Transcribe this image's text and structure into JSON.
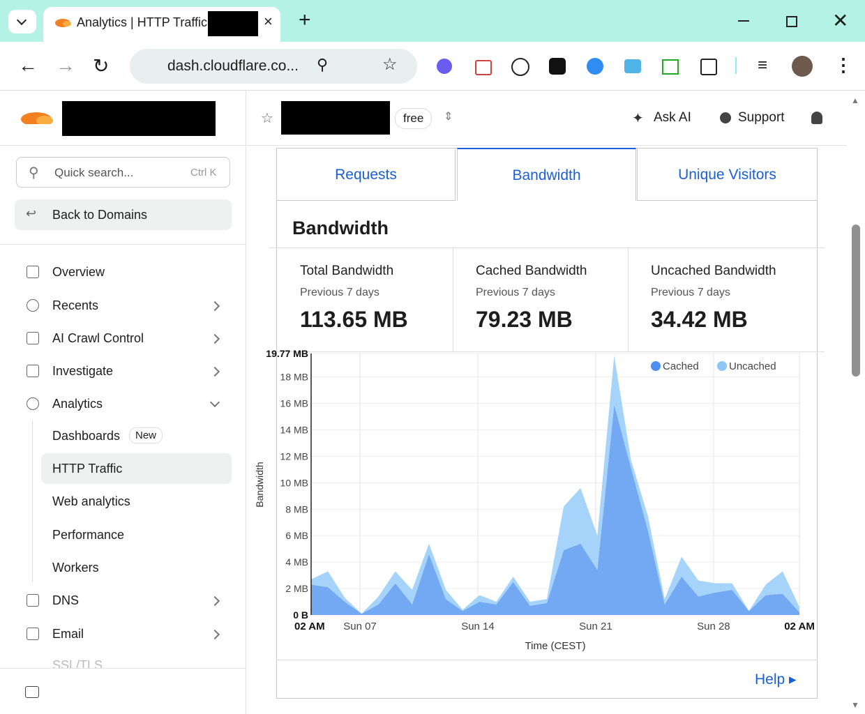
{
  "browser": {
    "tab_title": "Analytics | HTTP Traffic |",
    "url": "dash.cloudflare.co..."
  },
  "sidebar": {
    "search_placeholder": "Quick search...",
    "search_shortcut": "Ctrl K",
    "back": "Back to Domains",
    "nav": [
      "Overview",
      "Recents",
      "AI Crawl Control",
      "Investigate",
      "Analytics"
    ],
    "analytics_sub": [
      {
        "label": "Dashboards",
        "badge": "New"
      },
      {
        "label": "HTTP Traffic"
      },
      {
        "label": "Web analytics"
      },
      {
        "label": "Performance"
      },
      {
        "label": "Workers"
      }
    ],
    "nav_more": [
      "DNS",
      "Email",
      "SSL/TLS"
    ]
  },
  "header": {
    "plan": "free",
    "ask_ai": "Ask AI",
    "support": "Support"
  },
  "tabs": [
    "Requests",
    "Bandwidth",
    "Unique Visitors"
  ],
  "panel_title": "Bandwidth",
  "stats": [
    {
      "label": "Total Bandwidth",
      "period": "Previous 7 days",
      "value": "113.65 MB"
    },
    {
      "label": "Cached Bandwidth",
      "period": "Previous 7 days",
      "value": "79.23 MB"
    },
    {
      "label": "Uncached Bandwidth",
      "period": "Previous 7 days",
      "value": "34.42 MB"
    }
  ],
  "help": "Help",
  "chart_data": {
    "type": "stacked_area",
    "xlabel": "Time (CEST)",
    "ylabel": "Bandwidth",
    "grid": true,
    "legend": "top-right",
    "x": [
      0,
      1,
      2,
      3,
      4,
      5,
      6,
      7,
      8,
      9,
      10,
      11,
      12,
      13,
      14,
      15,
      16,
      17,
      18,
      19,
      20,
      21,
      22,
      23,
      24,
      25,
      26,
      27,
      28,
      29
    ],
    "xlim": [
      0,
      29
    ],
    "xticks": [
      {
        "value": 0,
        "label": "02 AM"
      },
      {
        "value": 2.9,
        "label": "Sun 07"
      },
      {
        "value": 9.9,
        "label": "Sun 14"
      },
      {
        "value": 16.9,
        "label": "Sun 21"
      },
      {
        "value": 23.9,
        "label": "Sun 28"
      },
      {
        "value": 29,
        "label": "02 AM"
      }
    ],
    "ylim": [
      0,
      19.77
    ],
    "yticks": [
      {
        "value": 0,
        "label": "0 B"
      },
      {
        "value": 2,
        "label": "2 MB"
      },
      {
        "value": 4,
        "label": "4 MB"
      },
      {
        "value": 6,
        "label": "6 MB"
      },
      {
        "value": 8,
        "label": "8 MB"
      },
      {
        "value": 10,
        "label": "10 MB"
      },
      {
        "value": 12,
        "label": "12 MB"
      },
      {
        "value": 14,
        "label": "14 MB"
      },
      {
        "value": 16,
        "label": "16 MB"
      },
      {
        "value": 18,
        "label": "18 MB"
      },
      {
        "value": 19.77,
        "label": "19.77 MB"
      }
    ],
    "series": [
      {
        "name": "Cached",
        "color": "#72a9f2",
        "legend_color": "#4d8ff0",
        "values": [
          2.3,
          2.1,
          1.0,
          0.1,
          0.8,
          2.4,
          0.8,
          4.6,
          1.2,
          0.3,
          1.0,
          0.8,
          2.5,
          0.7,
          0.9,
          4.9,
          5.4,
          3.4,
          15.9,
          11.1,
          6.4,
          0.8,
          2.9,
          1.4,
          1.7,
          1.9,
          0.3,
          1.5,
          1.6,
          0.2
        ]
      },
      {
        "name": "Uncached",
        "color": "#a6d3f9",
        "legend_color": "#8ec6f7",
        "values": [
          0.4,
          1.2,
          0.3,
          0,
          0.6,
          0.9,
          1.1,
          0.8,
          0.7,
          0.1,
          0.5,
          0.2,
          0.4,
          0.3,
          0.3,
          3.3,
          4.2,
          2.6,
          3.7,
          0.6,
          1.1,
          0.4,
          1.5,
          1.2,
          0.7,
          0.5,
          0,
          0.8,
          1.7,
          0.4
        ]
      }
    ]
  }
}
